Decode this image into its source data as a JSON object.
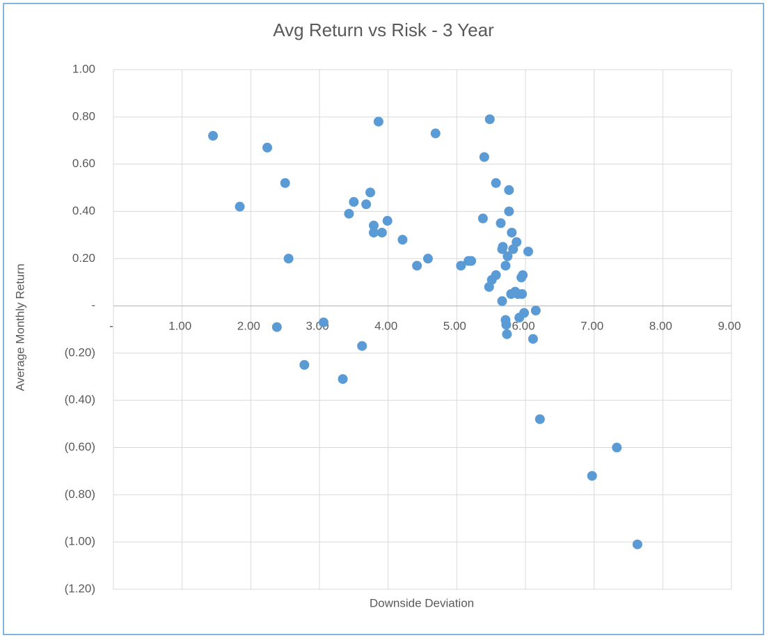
{
  "chart_data": {
    "type": "scatter",
    "title": "Avg Return vs Risk - 3 Year",
    "x_label": "Downside Deviation",
    "y_label": "Average Monthly Return",
    "color": "#5b9bd5",
    "grid": true,
    "xlim": [
      0,
      9
    ],
    "xticks": [
      {
        "value": 0,
        "label": "-"
      },
      {
        "value": 1,
        "label": "1.00"
      },
      {
        "value": 2,
        "label": "2.00"
      },
      {
        "value": 3,
        "label": "3.00"
      },
      {
        "value": 4,
        "label": "4.00"
      },
      {
        "value": 5,
        "label": "5.00"
      },
      {
        "value": 6,
        "label": "6.00"
      },
      {
        "value": 7,
        "label": "7.00"
      },
      {
        "value": 8,
        "label": "8.00"
      },
      {
        "value": 9,
        "label": "9.00"
      }
    ],
    "ylim": [
      -1.2,
      1
    ],
    "yticks": [
      {
        "value": 1,
        "label": "1.00"
      },
      {
        "value": 0.8,
        "label": "0.80"
      },
      {
        "value": 0.6,
        "label": "0.60"
      },
      {
        "value": 0.4,
        "label": "0.40"
      },
      {
        "value": 0.2,
        "label": "0.20"
      },
      {
        "value": 0,
        "label": "-"
      },
      {
        "value": -0.2,
        "label": "(0.20)"
      },
      {
        "value": -0.4,
        "label": "(0.40)"
      },
      {
        "value": -0.6,
        "label": "(0.60)"
      },
      {
        "value": -0.8,
        "label": "(0.80)"
      },
      {
        "value": -1,
        "label": "(1.00)"
      },
      {
        "value": -1.2,
        "label": "(1.20)"
      }
    ],
    "x": [
      1.45,
      1.84,
      2.24,
      2.5,
      2.55,
      2.38,
      2.78,
      3.06,
      3.34,
      3.43,
      3.5,
      3.68,
      3.74,
      3.79,
      3.79,
      3.86,
      3.91,
      3.99,
      3.62,
      4.21,
      4.42,
      4.58,
      4.69,
      5.06,
      5.17,
      5.21,
      5.4,
      5.38,
      5.48,
      5.47,
      5.51,
      5.57,
      5.57,
      5.64,
      5.66,
      5.67,
      5.66,
      5.71,
      5.71,
      5.72,
      5.73,
      5.74,
      5.76,
      5.76,
      5.8,
      5.82,
      5.79,
      5.85,
      5.87,
      5.89,
      5.91,
      5.94,
      5.96,
      5.95,
      5.98,
      6.04,
      6.11,
      6.15,
      6.21,
      6.97,
      7.33,
      7.63
    ],
    "values": [
      0.72,
      0.42,
      0.67,
      0.52,
      0.2,
      -0.09,
      -0.25,
      -0.07,
      -0.31,
      0.39,
      0.44,
      0.43,
      0.48,
      0.34,
      0.31,
      0.78,
      0.31,
      0.36,
      -0.17,
      0.28,
      0.17,
      0.2,
      0.73,
      0.17,
      0.19,
      0.19,
      0.63,
      0.37,
      0.79,
      0.08,
      0.11,
      0.52,
      0.13,
      0.35,
      0.24,
      0.25,
      0.02,
      0.17,
      -0.06,
      -0.08,
      -0.12,
      0.21,
      0.49,
      0.4,
      0.31,
      0.24,
      0.05,
      0.06,
      0.27,
      0.05,
      -0.05,
      0.12,
      0.13,
      0.05,
      -0.03,
      0.23,
      -0.14,
      -0.02,
      -0.48,
      -0.72,
      -0.6,
      -1.01
    ]
  }
}
